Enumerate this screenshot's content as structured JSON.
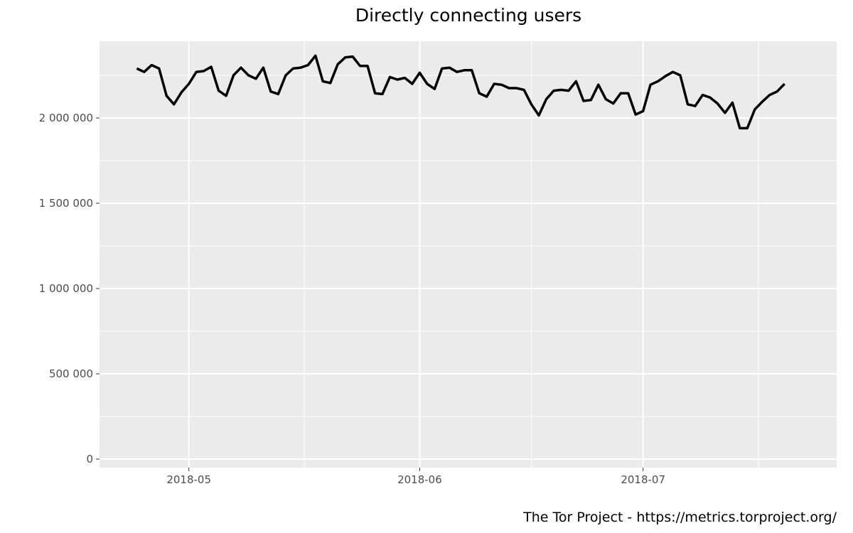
{
  "chart_data": {
    "type": "line",
    "title": "Directly connecting users",
    "caption": "The Tor Project - https://metrics.torproject.org/",
    "xlabel": "",
    "ylabel": "",
    "x_start": "2018-04-24",
    "x_end": "2018-07-20",
    "xlim": [
      "2018-04-19",
      "2018-07-27"
    ],
    "ylim": [
      -50000,
      2450000
    ],
    "y_ticks": [
      0,
      500000,
      1000000,
      1500000,
      2000000
    ],
    "y_tick_labels": [
      "0",
      "500 000",
      "1 000 000",
      "1 500 000",
      "2 000 000"
    ],
    "x_ticks": [
      "2018-05-01",
      "2018-06-01",
      "2018-07-01"
    ],
    "x_tick_labels": [
      "2018-05",
      "2018-06",
      "2018-07"
    ],
    "grid": true,
    "legend": "none",
    "line_color": "#000000",
    "panel_background": "#ebebeb",
    "grid_color": "#ffffff",
    "series": [
      {
        "values": [
          2290000,
          2270000,
          2310000,
          2290000,
          2130000,
          2080000,
          2150000,
          2200000,
          2270000,
          2275000,
          2300000,
          2160000,
          2130000,
          2250000,
          2295000,
          2250000,
          2230000,
          2295000,
          2155000,
          2140000,
          2250000,
          2290000,
          2295000,
          2310000,
          2365000,
          2215000,
          2205000,
          2315000,
          2355000,
          2360000,
          2305000,
          2305000,
          2145000,
          2140000,
          2240000,
          2225000,
          2235000,
          2200000,
          2265000,
          2200000,
          2170000,
          2290000,
          2295000,
          2270000,
          2280000,
          2280000,
          2145000,
          2125000,
          2200000,
          2195000,
          2175000,
          2175000,
          2165000,
          2080000,
          2015000,
          2110000,
          2160000,
          2165000,
          2160000,
          2215000,
          2100000,
          2105000,
          2195000,
          2110000,
          2085000,
          2145000,
          2145000,
          2020000,
          2040000,
          2195000,
          2215000,
          2245000,
          2270000,
          2250000,
          2080000,
          2070000,
          2135000,
          2120000,
          2085000,
          2030000,
          2090000,
          1940000,
          1940000,
          2050000,
          2095000,
          2135000,
          2155000,
          2200000
        ]
      }
    ]
  }
}
